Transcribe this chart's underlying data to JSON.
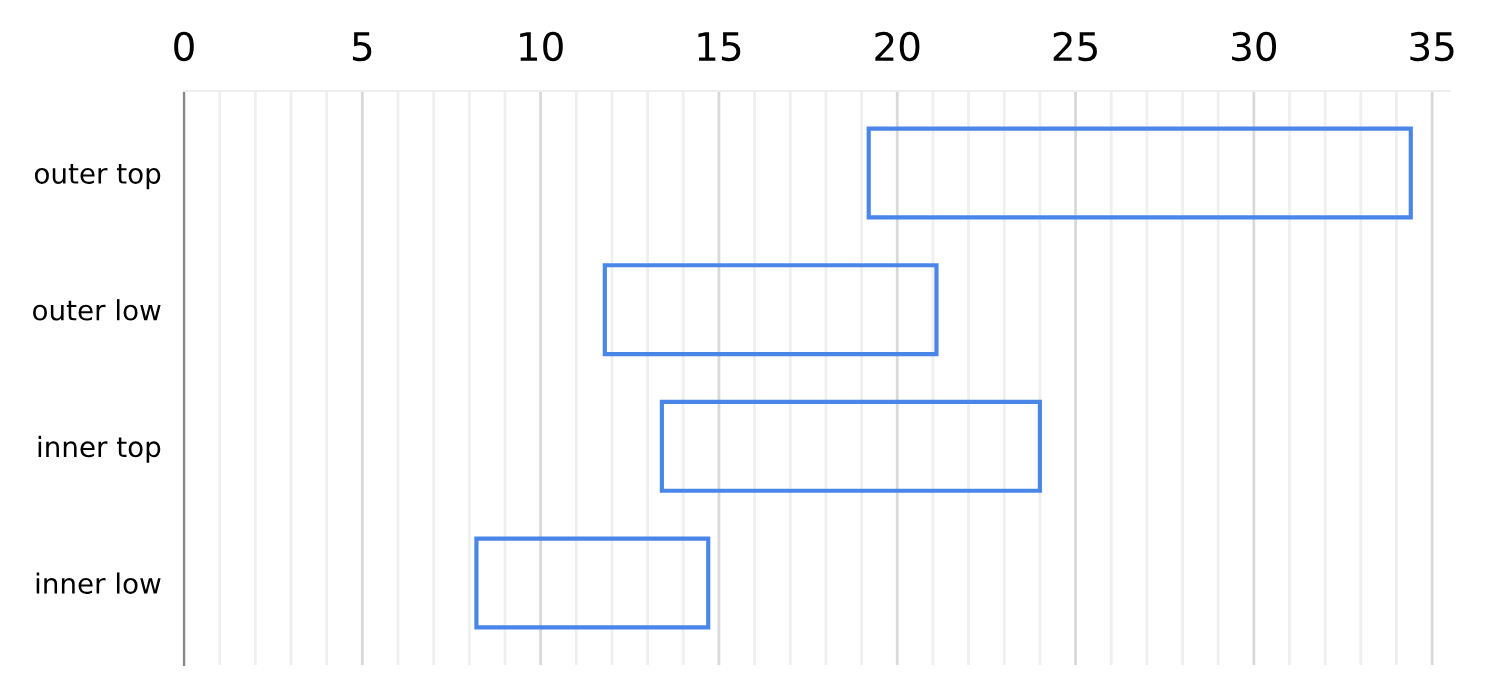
{
  "chart_data": {
    "type": "bar",
    "orientation": "horizontal",
    "categories": [
      "outer top",
      "outer low",
      "inner top",
      "inner low"
    ],
    "base": [
      19.2,
      11.8,
      13.4,
      8.2
    ],
    "values": [
      15.2,
      9.3,
      10.6,
      6.5
    ],
    "color": "#4a86e8",
    "xlim": [
      0,
      35.5
    ],
    "xticks": [
      0,
      {
        "value": 1,
        "label": null
      },
      {
        "value": 2,
        "label": null
      },
      {
        "value": 3,
        "label": null
      },
      {
        "value": 4,
        "label": null
      },
      5,
      {
        "value": 6,
        "label": null
      },
      {
        "value": 7,
        "label": null
      },
      {
        "value": 8,
        "label": null
      },
      {
        "value": 9,
        "label": null
      },
      10,
      {
        "value": 11,
        "label": null
      },
      {
        "value": 12,
        "label": null
      },
      {
        "value": 13,
        "label": null
      },
      {
        "value": 14,
        "label": null
      },
      15,
      {
        "value": 16,
        "label": null
      },
      {
        "value": 17,
        "label": null
      },
      {
        "value": 18,
        "label": null
      },
      {
        "value": 19,
        "label": null
      },
      20,
      {
        "value": 21,
        "label": null
      },
      {
        "value": 22,
        "label": null
      },
      {
        "value": 23,
        "label": null
      },
      {
        "value": 24,
        "label": null
      },
      25,
      {
        "value": 26,
        "label": null
      },
      {
        "value": 27,
        "label": null
      },
      {
        "value": 28,
        "label": null
      },
      {
        "value": 29,
        "label": null
      },
      30,
      {
        "value": 31,
        "label": null
      },
      {
        "value": 32,
        "label": null
      },
      {
        "value": 33,
        "label": null
      },
      {
        "value": 34,
        "label": null
      },
      35
    ],
    "grid": "x"
  }
}
